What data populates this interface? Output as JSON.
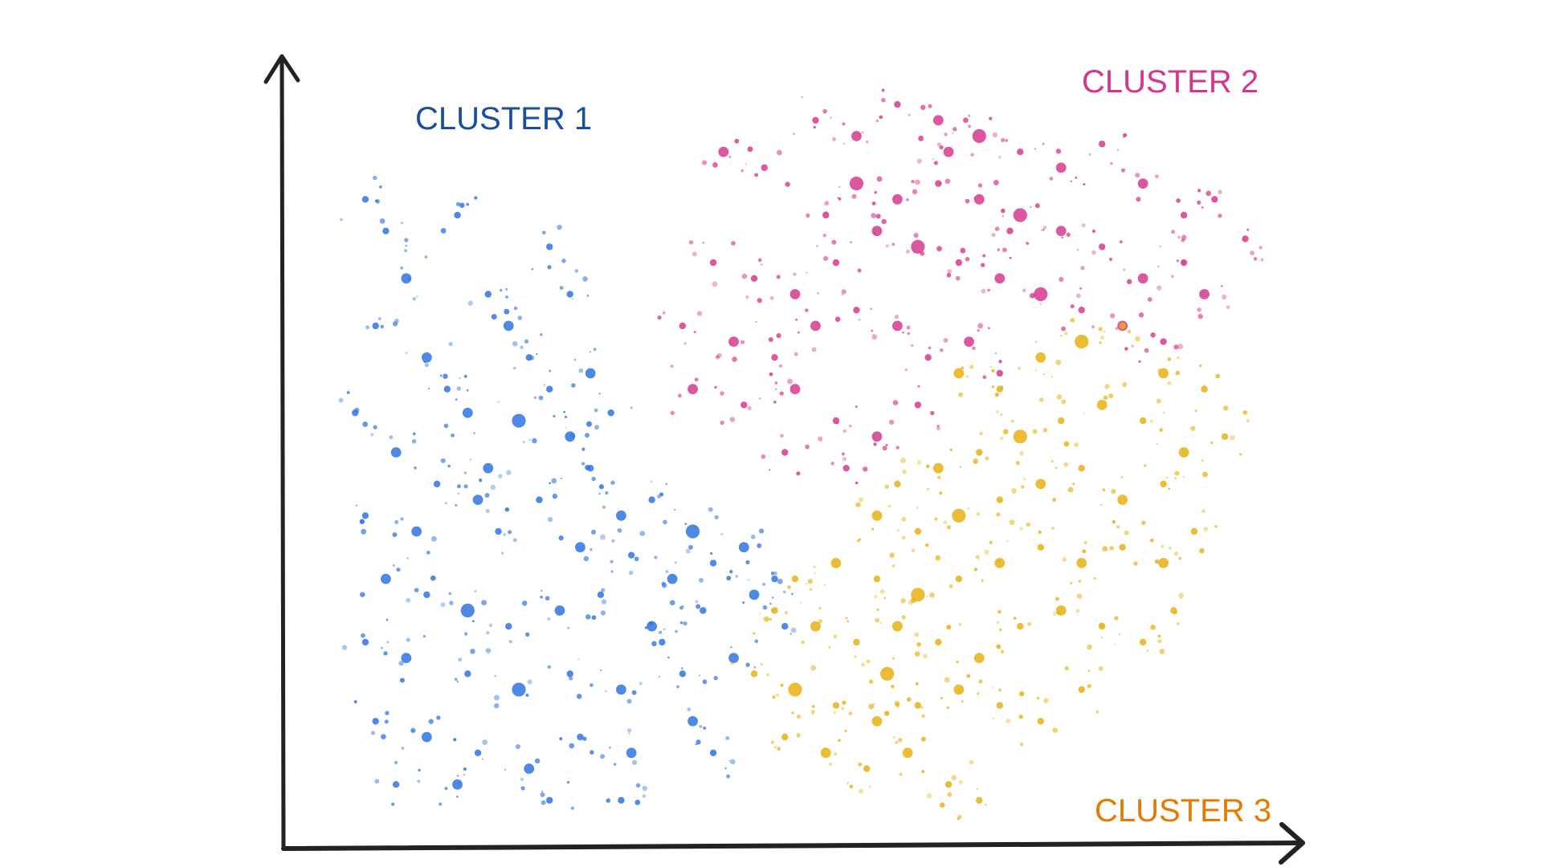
{
  "chart_data": {
    "type": "scatter",
    "title": "",
    "xlabel": "",
    "ylabel": "",
    "xlim": [
      0,
      100
    ],
    "ylim": [
      0,
      100
    ],
    "grid": false,
    "ticks": false,
    "axes_style": "hand-drawn arrows",
    "series": [
      {
        "name": "CLUSTER 1",
        "color": "#2f74e0",
        "label_color": "#1a4fa0",
        "points": [
          [
            8,
            82,
            1
          ],
          [
            10,
            78,
            1
          ],
          [
            12,
            72,
            2
          ],
          [
            9,
            66,
            1
          ],
          [
            14,
            62,
            2
          ],
          [
            16,
            58,
            1
          ],
          [
            18,
            55,
            2
          ],
          [
            20,
            70,
            1
          ],
          [
            22,
            66,
            2
          ],
          [
            24,
            62,
            1
          ],
          [
            23,
            54,
            3
          ],
          [
            26,
            58,
            1
          ],
          [
            28,
            52,
            2
          ],
          [
            30,
            48,
            1
          ],
          [
            7,
            55,
            1
          ],
          [
            11,
            50,
            2
          ],
          [
            15,
            46,
            1
          ],
          [
            19,
            44,
            2
          ],
          [
            25,
            44,
            1
          ],
          [
            33,
            42,
            2
          ],
          [
            36,
            44,
            1
          ],
          [
            40,
            40,
            3
          ],
          [
            42,
            36,
            1
          ],
          [
            45,
            38,
            2
          ],
          [
            48,
            34,
            1
          ],
          [
            38,
            34,
            2
          ],
          [
            34,
            37,
            1
          ],
          [
            29,
            38,
            2
          ],
          [
            21,
            40,
            1
          ],
          [
            13,
            40,
            2
          ],
          [
            8,
            42,
            1
          ],
          [
            10,
            34,
            2
          ],
          [
            14,
            32,
            1
          ],
          [
            18,
            30,
            3
          ],
          [
            22,
            28,
            1
          ],
          [
            27,
            30,
            2
          ],
          [
            31,
            32,
            1
          ],
          [
            36,
            28,
            2
          ],
          [
            41,
            30,
            1
          ],
          [
            46,
            32,
            2
          ],
          [
            49,
            28,
            1
          ],
          [
            44,
            24,
            2
          ],
          [
            39,
            22,
            1
          ],
          [
            33,
            20,
            2
          ],
          [
            28,
            22,
            1
          ],
          [
            23,
            20,
            3
          ],
          [
            18,
            22,
            1
          ],
          [
            12,
            24,
            2
          ],
          [
            8,
            26,
            1
          ],
          [
            9,
            16,
            1
          ],
          [
            14,
            14,
            2
          ],
          [
            19,
            12,
            1
          ],
          [
            24,
            10,
            2
          ],
          [
            29,
            14,
            1
          ],
          [
            34,
            12,
            2
          ],
          [
            33,
            6,
            1
          ],
          [
            26,
            6,
            1
          ],
          [
            17,
            8,
            2
          ],
          [
            11,
            8,
            1
          ],
          [
            40,
            16,
            2
          ],
          [
            42,
            12,
            1
          ],
          [
            28,
            70,
            1
          ],
          [
            26,
            76,
            1
          ],
          [
            17,
            80,
            1
          ],
          [
            30,
            60,
            2
          ],
          [
            32,
            55,
            1
          ],
          [
            20,
            48,
            2
          ],
          [
            37,
            26,
            1
          ]
        ]
      },
      {
        "name": "CLUSTER 2",
        "color": "#d63a8c",
        "label_color": "#d6368a",
        "points": [
          [
            43,
            88,
            2
          ],
          [
            47,
            86,
            1
          ],
          [
            52,
            92,
            1
          ],
          [
            56,
            90,
            2
          ],
          [
            60,
            94,
            1
          ],
          [
            64,
            92,
            2
          ],
          [
            68,
            90,
            3
          ],
          [
            72,
            88,
            1
          ],
          [
            76,
            86,
            2
          ],
          [
            80,
            89,
            1
          ],
          [
            84,
            84,
            2
          ],
          [
            88,
            80,
            1
          ],
          [
            91,
            82,
            1
          ],
          [
            94,
            77,
            1
          ],
          [
            56,
            84,
            3
          ],
          [
            60,
            82,
            2
          ],
          [
            64,
            84,
            1
          ],
          [
            68,
            82,
            2
          ],
          [
            72,
            80,
            3
          ],
          [
            76,
            78,
            2
          ],
          [
            80,
            76,
            1
          ],
          [
            84,
            72,
            2
          ],
          [
            88,
            74,
            1
          ],
          [
            58,
            78,
            2
          ],
          [
            62,
            76,
            3
          ],
          [
            66,
            74,
            1
          ],
          [
            70,
            72,
            2
          ],
          [
            74,
            70,
            3
          ],
          [
            78,
            68,
            1
          ],
          [
            82,
            66,
            2
          ],
          [
            54,
            74,
            1
          ],
          [
            50,
            70,
            2
          ],
          [
            46,
            72,
            1
          ],
          [
            42,
            74,
            1
          ],
          [
            39,
            66,
            1
          ],
          [
            44,
            64,
            2
          ],
          [
            48,
            62,
            1
          ],
          [
            52,
            66,
            2
          ],
          [
            56,
            68,
            1
          ],
          [
            60,
            66,
            2
          ],
          [
            63,
            62,
            1
          ],
          [
            67,
            64,
            2
          ],
          [
            70,
            60,
            1
          ],
          [
            40,
            58,
            2
          ],
          [
            45,
            56,
            1
          ],
          [
            50,
            58,
            2
          ],
          [
            54,
            54,
            1
          ],
          [
            58,
            52,
            2
          ],
          [
            62,
            56,
            1
          ],
          [
            49,
            50,
            1
          ],
          [
            55,
            48,
            1
          ],
          [
            86,
            64,
            1
          ],
          [
            90,
            70,
            2
          ],
          [
            71,
            78,
            1
          ],
          [
            65,
            88,
            2
          ],
          [
            53,
            80,
            1
          ]
        ]
      },
      {
        "name": "CLUSTER 3",
        "color": "#e8b010",
        "label_color": "#e67a00",
        "points": [
          [
            66,
            60,
            2
          ],
          [
            70,
            58,
            1
          ],
          [
            74,
            62,
            2
          ],
          [
            78,
            64,
            3
          ],
          [
            82,
            66,
            1
          ],
          [
            86,
            60,
            2
          ],
          [
            90,
            58,
            1
          ],
          [
            92,
            52,
            1
          ],
          [
            88,
            50,
            2
          ],
          [
            84,
            54,
            1
          ],
          [
            80,
            56,
            2
          ],
          [
            76,
            54,
            1
          ],
          [
            72,
            52,
            3
          ],
          [
            68,
            50,
            1
          ],
          [
            64,
            48,
            2
          ],
          [
            60,
            46,
            1
          ],
          [
            58,
            42,
            2
          ],
          [
            62,
            40,
            1
          ],
          [
            66,
            42,
            3
          ],
          [
            70,
            44,
            1
          ],
          [
            74,
            46,
            2
          ],
          [
            78,
            48,
            1
          ],
          [
            82,
            44,
            2
          ],
          [
            86,
            46,
            1
          ],
          [
            89,
            40,
            1
          ],
          [
            86,
            36,
            2
          ],
          [
            82,
            38,
            1
          ],
          [
            78,
            36,
            2
          ],
          [
            74,
            38,
            1
          ],
          [
            70,
            36,
            2
          ],
          [
            66,
            34,
            1
          ],
          [
            62,
            32,
            3
          ],
          [
            58,
            34,
            1
          ],
          [
            54,
            36,
            2
          ],
          [
            50,
            34,
            1
          ],
          [
            48,
            30,
            1
          ],
          [
            52,
            28,
            2
          ],
          [
            56,
            26,
            1
          ],
          [
            60,
            28,
            2
          ],
          [
            64,
            26,
            1
          ],
          [
            68,
            24,
            2
          ],
          [
            72,
            28,
            1
          ],
          [
            76,
            30,
            2
          ],
          [
            80,
            28,
            1
          ],
          [
            84,
            26,
            1
          ],
          [
            87,
            30,
            1
          ],
          [
            46,
            22,
            1
          ],
          [
            50,
            20,
            3
          ],
          [
            54,
            18,
            1
          ],
          [
            58,
            16,
            2
          ],
          [
            62,
            18,
            1
          ],
          [
            66,
            20,
            2
          ],
          [
            70,
            18,
            1
          ],
          [
            74,
            16,
            1
          ],
          [
            78,
            20,
            1
          ],
          [
            53,
            12,
            2
          ],
          [
            57,
            10,
            1
          ],
          [
            61,
            12,
            2
          ],
          [
            65,
            8,
            1
          ],
          [
            68,
            6,
            1
          ],
          [
            49,
            14,
            1
          ],
          [
            59,
            22,
            3
          ]
        ]
      }
    ]
  }
}
